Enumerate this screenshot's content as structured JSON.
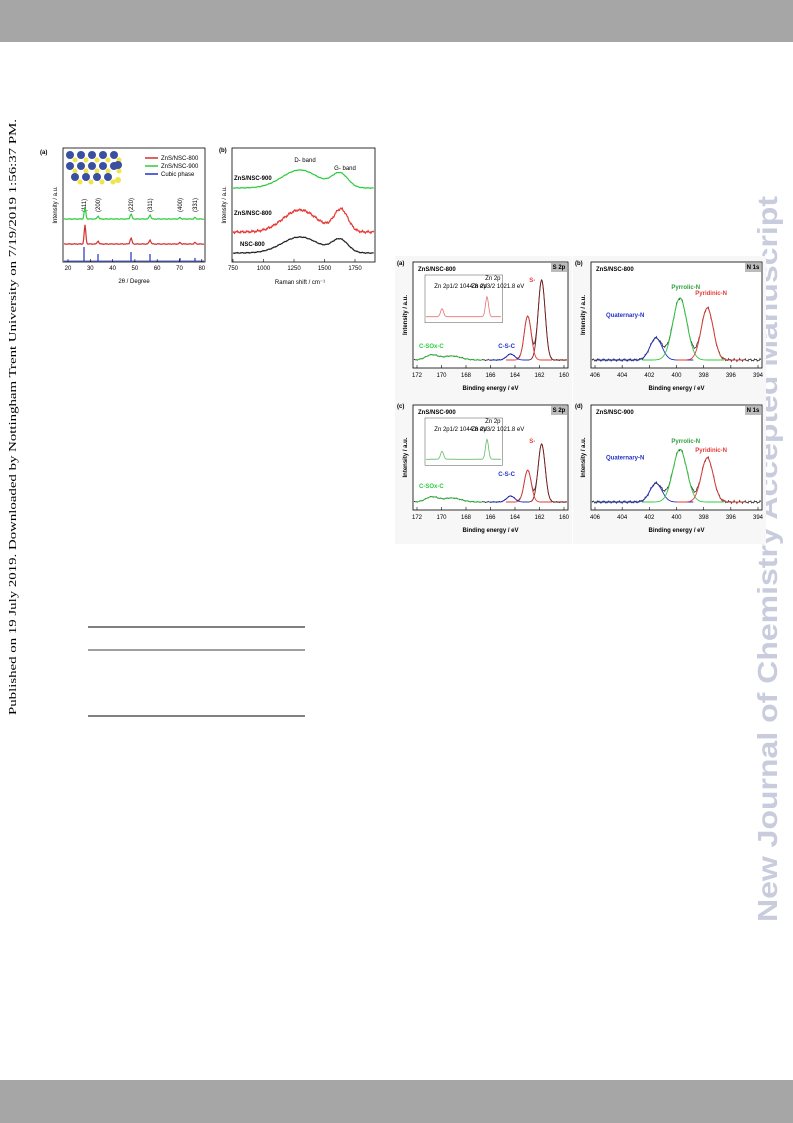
{
  "side_note": "Published on 19 July 2019. Downloaded by Nottingham Trent University on 7/19/2019 1:56:37 PM.",
  "watermark": "New Journal of Chemistry Accepted Manuscript",
  "figure1": {
    "a": {
      "label": "(a)",
      "legend": [
        "ZnS/NSC-800",
        "ZnS/NSC-900",
        "Cubic phase"
      ],
      "peaks": [
        "(111)",
        "(200)",
        "(220)",
        "(311)",
        "(400)",
        "(331)"
      ],
      "ylabel": "Intensity / a.u.",
      "xlabel": "2θ / Degree",
      "xticks": [
        "20",
        "30",
        "40",
        "50",
        "60",
        "70",
        "80"
      ]
    },
    "b": {
      "label": "(b)",
      "bands": [
        "D- band",
        "G- band"
      ],
      "traces": [
        "ZnS/NSC-900",
        "ZnS/NSC-800",
        "NSC-800"
      ],
      "ylabel": "Intensity / a.u.",
      "xlabel": "Raman shift / cm⁻¹",
      "xticks": [
        "750",
        "1000",
        "1250",
        "1500",
        "1750"
      ]
    }
  },
  "figure2": {
    "panels": [
      {
        "label": "(a)",
        "sample": "ZnS/NSC-800",
        "tag": "S 2p",
        "peaks": [
          "S-",
          "C-SOx-C",
          "C-S-C"
        ],
        "inset": {
          "tag": "Zn 2p",
          "labels": [
            "Zn 2p1/2 1044.8 eV",
            "Zn 2p3/2 1021.8 eV"
          ]
        },
        "ylabel": "Intensity / a.u.",
        "xlabel": "Binding energy / eV",
        "xticks": [
          "172",
          "170",
          "168",
          "166",
          "164",
          "162",
          "160"
        ]
      },
      {
        "label": "(b)",
        "sample": "ZnS/NSC-800",
        "tag": "N 1s",
        "peaks": [
          "Quaternary-N",
          "Pyrrolic-N",
          "Pyridinic-N"
        ],
        "ylabel": "Intensity / a.u.",
        "xlabel": "Binding energy / eV",
        "xticks": [
          "406",
          "404",
          "402",
          "400",
          "398",
          "396",
          "394"
        ]
      },
      {
        "label": "(c)",
        "sample": "ZnS/NSC-900",
        "tag": "S 2p",
        "peaks": [
          "S-",
          "C-SOx-C",
          "C-S-C"
        ],
        "inset": {
          "tag": "Zn 2p",
          "labels": [
            "Zn 2p1/2 1044.8 eV",
            "Zn 2p3/2 1021.8 eV"
          ]
        },
        "ylabel": "Intensity / a.u.",
        "xlabel": "Binding energy / eV",
        "xticks": [
          "172",
          "170",
          "168",
          "166",
          "164",
          "162",
          "160"
        ]
      },
      {
        "label": "(d)",
        "sample": "ZnS/NSC-900",
        "tag": "N 1s",
        "peaks": [
          "Quaternary-N",
          "Pyrrolic-N",
          "Pyridinic-N"
        ],
        "ylabel": "Intensity / a.u.",
        "xlabel": "Binding energy / eV",
        "xticks": [
          "406",
          "404",
          "402",
          "400",
          "398",
          "396",
          "394"
        ]
      }
    ]
  }
}
